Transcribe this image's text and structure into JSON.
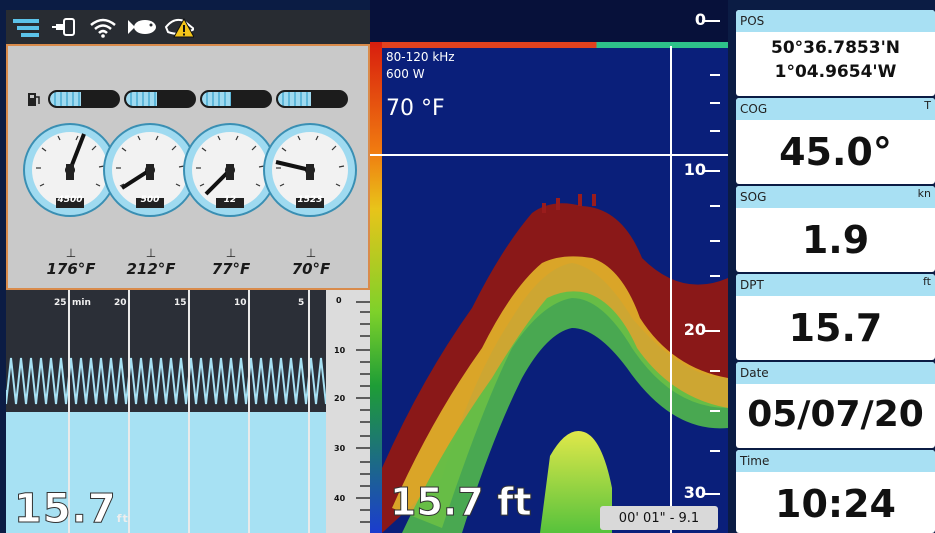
{
  "status_icons": [
    "menu-icon",
    "gps-plug-icon",
    "wifi-icon",
    "fish-icon",
    "warning-icon"
  ],
  "engine": {
    "fuel_levels": [
      0.45,
      0.45,
      0.42,
      0.48
    ],
    "gauges": [
      {
        "value_label": "4500"
      },
      {
        "value_label": "500"
      },
      {
        "value_label": "12"
      },
      {
        "value_label": "1523"
      }
    ],
    "temperatures": [
      "176°F",
      "212°F",
      "77°F",
      "70°F"
    ]
  },
  "history": {
    "time_labels": [
      "25",
      "min",
      "20",
      "15",
      "10",
      "5"
    ],
    "scale_labels": [
      "0",
      "10",
      "20",
      "30",
      "40"
    ],
    "depth_value": "15.7",
    "depth_unit": "ft"
  },
  "sonar": {
    "frequency": "80-120 kHz",
    "power": "600 W",
    "water_temp": "70 °F",
    "scale_labels": [
      "0",
      "10",
      "20",
      "30"
    ],
    "depth_readout": "15.7 ft",
    "time_readout": "00' 01\" - 9.1"
  },
  "data_boxes": {
    "pos": {
      "label": "POS",
      "lat": "50°36.7853'N",
      "lon": "1°04.9654'W"
    },
    "cog": {
      "label": "COG",
      "unit": "T",
      "value": "45.0°"
    },
    "sog": {
      "label": "SOG",
      "unit": "kn",
      "value": "1.9"
    },
    "dpt": {
      "label": "DPT",
      "unit": "ft",
      "value": "15.7"
    },
    "date": {
      "label": "Date",
      "value": "05/07/20"
    },
    "time": {
      "label": "Time",
      "value": "10:24"
    }
  },
  "colors": {
    "gauge_accent": "#9fdaf0",
    "panel_border": "#d98b4b",
    "sonar_bg": "#0a1f7a",
    "box_header": "#a8e0f3"
  }
}
